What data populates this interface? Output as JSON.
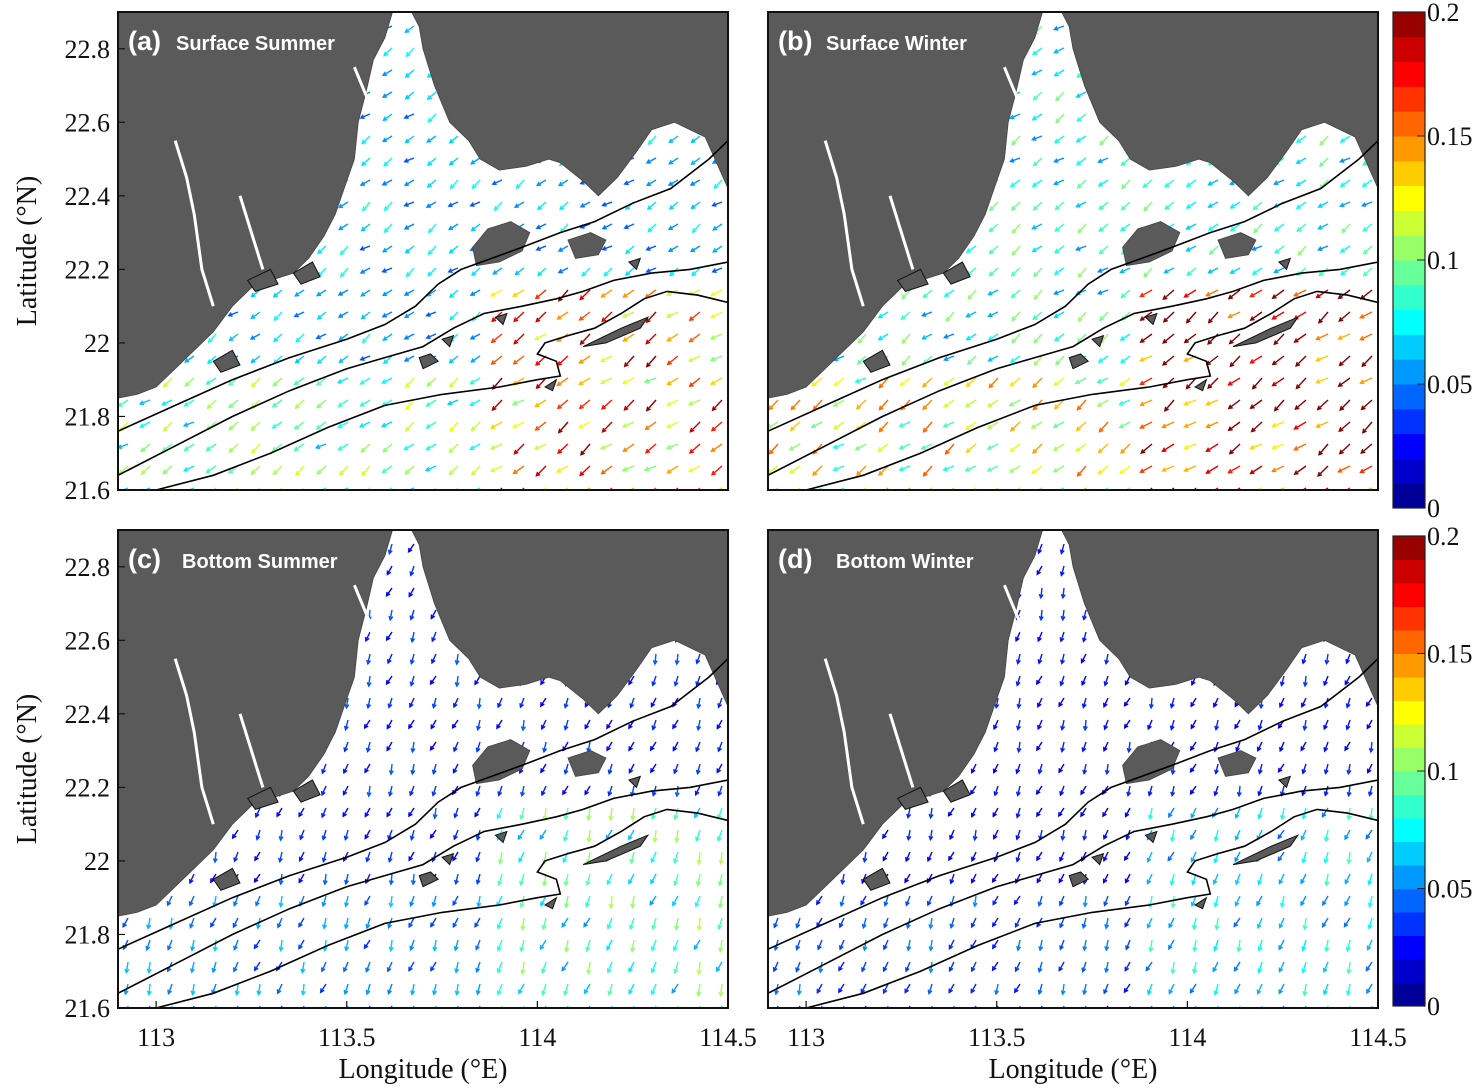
{
  "figure": {
    "panels": [
      {
        "id": "a",
        "letter": "(a)",
        "label": "Surface Summer",
        "row": 0,
        "col": 0,
        "speed_scale": 1.0
      },
      {
        "id": "b",
        "letter": "(b)",
        "label": "Surface Winter",
        "row": 0,
        "col": 1,
        "speed_scale": 1.3
      },
      {
        "id": "c",
        "letter": "(c)",
        "label": "Bottom Summer",
        "row": 1,
        "col": 0,
        "speed_scale": 0.55
      },
      {
        "id": "d",
        "letter": "(d)",
        "label": "Bottom Winter",
        "row": 1,
        "col": 1,
        "speed_scale": 0.45
      }
    ],
    "x_axis": {
      "label": "Longitude (°E)",
      "ticks": [
        113,
        113.5,
        114,
        114.5
      ],
      "tick_labels": [
        "113",
        "113.5",
        "114",
        "114.5"
      ],
      "range": [
        112.9,
        114.5
      ]
    },
    "y_axis": {
      "label": "Latitude (°N)",
      "ticks": [
        21.6,
        21.8,
        22,
        22.2,
        22.4,
        22.6,
        22.8
      ],
      "tick_labels": [
        "21.6",
        "21.8",
        "22",
        "22.2",
        "22.4",
        "22.6",
        "22.8"
      ],
      "range": [
        21.6,
        22.9
      ]
    },
    "colorbar": {
      "min": 0,
      "max": 0.2,
      "tick_values": [
        0,
        0.05,
        0.1,
        0.15,
        0.2
      ],
      "tick_labels": [
        "0",
        "0.05",
        "0.1",
        "0.15",
        "0.2"
      ],
      "levels": 20,
      "colormap": "jet"
    },
    "colors": {
      "land": "#5a5a5a",
      "sea": "#ffffff",
      "contour": "#000000"
    }
  }
}
